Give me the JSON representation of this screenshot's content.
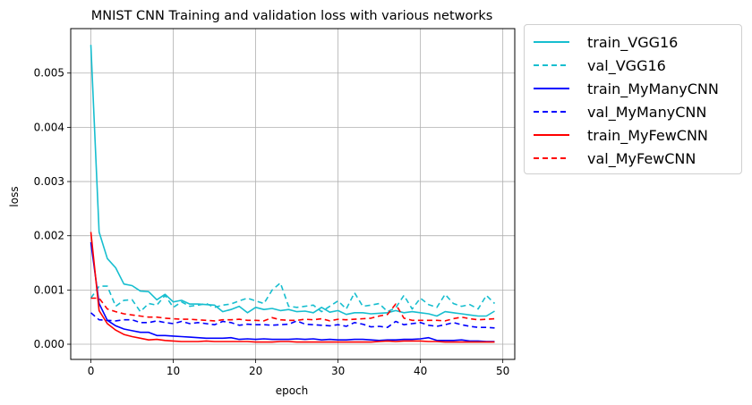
{
  "chart_data": {
    "type": "line",
    "title": "MNIST CNN Training and validation loss with various networks",
    "xlabel": "epoch",
    "ylabel": "loss",
    "xlim": [
      -2.45,
      51.45
    ],
    "ylim": [
      -0.00028,
      0.00582
    ],
    "xticks": [
      0,
      10,
      20,
      30,
      40,
      50
    ],
    "xtick_labels": [
      "0",
      "10",
      "20",
      "30",
      "40",
      "50"
    ],
    "yticks": [
      0,
      0.001,
      0.002,
      0.003,
      0.004,
      0.005
    ],
    "ytick_labels": [
      "0.000",
      "0.001",
      "0.002",
      "0.003",
      "0.004",
      "0.005"
    ],
    "grid": true,
    "legend_position": "outside-top-right",
    "x": [
      0,
      1,
      2,
      3,
      4,
      5,
      6,
      7,
      8,
      9,
      10,
      11,
      12,
      13,
      14,
      15,
      16,
      17,
      18,
      19,
      20,
      21,
      22,
      23,
      24,
      25,
      26,
      27,
      28,
      29,
      30,
      31,
      32,
      33,
      34,
      35,
      36,
      37,
      38,
      39,
      40,
      41,
      42,
      43,
      44,
      45,
      46,
      47,
      48,
      49
    ],
    "series": [
      {
        "name": "train_VGG16",
        "color": "#17becf",
        "dash": false,
        "values": [
          0.00552,
          0.00207,
          0.00158,
          0.00141,
          0.00111,
          0.00108,
          0.00098,
          0.00097,
          0.00082,
          0.00092,
          0.00078,
          0.00081,
          0.00074,
          0.00074,
          0.00073,
          0.00072,
          0.0006,
          0.00064,
          0.0007,
          0.00058,
          0.00068,
          0.00064,
          0.00066,
          0.00062,
          0.00064,
          0.0006,
          0.00061,
          0.00058,
          0.00068,
          0.00059,
          0.00062,
          0.00055,
          0.00058,
          0.00058,
          0.00056,
          0.00057,
          0.00058,
          0.00062,
          0.00058,
          0.0006,
          0.00058,
          0.00056,
          0.00052,
          0.0006,
          0.00058,
          0.00056,
          0.00054,
          0.00052,
          0.00052,
          0.00061
        ]
      },
      {
        "name": "val_VGG16",
        "color": "#17becf",
        "dash": true,
        "values": [
          0.00085,
          0.00107,
          0.00107,
          0.0007,
          0.00081,
          0.00082,
          0.0006,
          0.00075,
          0.00072,
          0.0009,
          0.00068,
          0.00078,
          0.0007,
          0.00072,
          0.00075,
          0.00068,
          0.00072,
          0.00074,
          0.0008,
          0.00085,
          0.0008,
          0.00075,
          0.001,
          0.00113,
          0.0007,
          0.00068,
          0.0007,
          0.00072,
          0.0006,
          0.0007,
          0.0008,
          0.00065,
          0.00095,
          0.0007,
          0.00072,
          0.00075,
          0.0006,
          0.00067,
          0.0009,
          0.00065,
          0.00085,
          0.00073,
          0.00068,
          0.00092,
          0.00075,
          0.0007,
          0.00073,
          0.00065,
          0.0009,
          0.00075
        ]
      },
      {
        "name": "train_MyManyCNN",
        "color": "#0000ff",
        "dash": false,
        "values": [
          0.00188,
          0.00075,
          0.00044,
          0.00034,
          0.00028,
          0.00025,
          0.00022,
          0.00022,
          0.00016,
          0.00016,
          0.00015,
          0.00014,
          0.00013,
          0.00012,
          0.00011,
          0.00011,
          0.00011,
          0.00012,
          9e-05,
          0.0001,
          9e-05,
          0.0001,
          9e-05,
          9e-05,
          9e-05,
          0.0001,
          9e-05,
          0.0001,
          8e-05,
          9e-05,
          8e-05,
          8e-05,
          9e-05,
          9e-05,
          8e-05,
          7e-05,
          8e-05,
          8e-05,
          9e-05,
          9e-05,
          0.0001,
          0.00012,
          7e-05,
          7e-05,
          7e-05,
          8e-05,
          6e-05,
          6e-05,
          5e-05,
          5e-05
        ]
      },
      {
        "name": "val_MyManyCNN",
        "color": "#0000ff",
        "dash": true,
        "values": [
          0.00058,
          0.00045,
          0.00044,
          0.00043,
          0.00045,
          0.00045,
          0.0004,
          0.0004,
          0.00043,
          0.0004,
          0.00038,
          0.00042,
          0.00038,
          0.0004,
          0.00038,
          0.00036,
          0.00042,
          0.0004,
          0.00035,
          0.00037,
          0.00036,
          0.00036,
          0.00035,
          0.00036,
          0.00037,
          0.00043,
          0.00037,
          0.00036,
          0.00035,
          0.00034,
          0.00036,
          0.00033,
          0.0004,
          0.00037,
          0.00032,
          0.00033,
          0.00031,
          0.00042,
          0.00036,
          0.00038,
          0.0004,
          0.00035,
          0.00033,
          0.00036,
          0.0004,
          0.00036,
          0.00033,
          0.00031,
          0.00031,
          0.0003
        ]
      },
      {
        "name": "train_MyFewCNN",
        "color": "#ff0000",
        "dash": false,
        "values": [
          0.00207,
          0.00062,
          0.00038,
          0.00026,
          0.00018,
          0.00014,
          0.00011,
          8e-05,
          9e-05,
          7e-05,
          6e-05,
          5e-05,
          5e-05,
          5e-05,
          6e-05,
          5e-05,
          5e-05,
          5e-05,
          5e-05,
          5e-05,
          4e-05,
          4e-05,
          4e-05,
          5e-05,
          5e-05,
          4e-05,
          4e-05,
          4e-05,
          4e-05,
          4e-05,
          4e-05,
          4e-05,
          4e-05,
          4e-05,
          4e-05,
          5e-05,
          6e-05,
          5e-05,
          6e-05,
          6e-05,
          6e-05,
          5e-05,
          5e-05,
          4e-05,
          4e-05,
          4e-05,
          4e-05,
          4e-05,
          4e-05,
          4e-05
        ]
      },
      {
        "name": "val_MyFewCNN",
        "color": "#ff0000",
        "dash": true,
        "values": [
          0.00085,
          0.00085,
          0.00065,
          0.0006,
          0.00056,
          0.00054,
          0.00052,
          0.0005,
          0.0005,
          0.00048,
          0.00047,
          0.00046,
          0.00046,
          0.00045,
          0.00044,
          0.00043,
          0.00045,
          0.00045,
          0.00046,
          0.00044,
          0.00044,
          0.00043,
          0.00049,
          0.00045,
          0.00044,
          0.00044,
          0.00046,
          0.00045,
          0.00047,
          0.00043,
          0.00046,
          0.00045,
          0.00046,
          0.00047,
          0.00048,
          0.00052,
          0.00055,
          0.00074,
          0.00048,
          0.00044,
          0.00044,
          0.00044,
          0.00044,
          0.00043,
          0.00047,
          0.0005,
          0.00047,
          0.00045,
          0.00046,
          0.00047
        ]
      }
    ]
  }
}
